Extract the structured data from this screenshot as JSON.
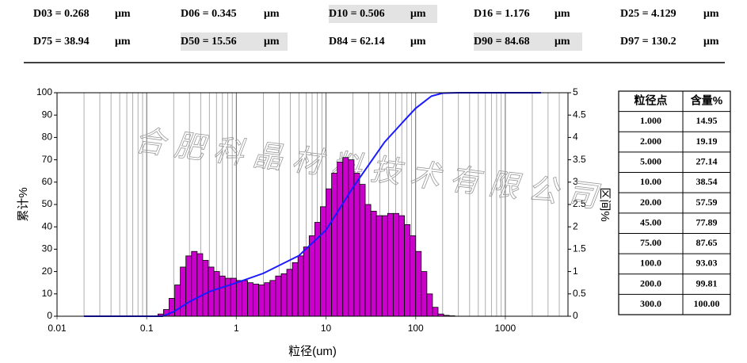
{
  "stats": [
    {
      "text": "D03 = 0.268",
      "unit": "μm"
    },
    {
      "text": "D06 = 0.345",
      "unit": "μm"
    },
    {
      "text": "D10 = 0.506",
      "unit": "μm"
    },
    {
      "text": "D16 = 1.176",
      "unit": "μm"
    },
    {
      "text": "D25 = 4.129",
      "unit": "μm"
    },
    {
      "text": "D75 = 38.94",
      "unit": "μm"
    },
    {
      "text": "D50 = 15.56",
      "unit": "μm"
    },
    {
      "text": "D84 = 62.14",
      "unit": "μm"
    },
    {
      "text": "D90 = 84.68",
      "unit": "μm"
    },
    {
      "text": "D97 = 130.2",
      "unit": "μm"
    }
  ],
  "table": {
    "header": [
      "粒径点",
      "含量%"
    ],
    "rows": [
      [
        "1.000",
        "14.95"
      ],
      [
        "2.000",
        "19.19"
      ],
      [
        "5.000",
        "27.14"
      ],
      [
        "10.00",
        "38.54"
      ],
      [
        "20.00",
        "57.59"
      ],
      [
        "45.00",
        "77.89"
      ],
      [
        "75.00",
        "87.65"
      ],
      [
        "100.0",
        "93.03"
      ],
      [
        "200.0",
        "99.81"
      ],
      [
        "300.0",
        "100.00"
      ]
    ]
  },
  "chart_data": {
    "type": "histogram",
    "x_label": "粒径(um)",
    "y_label": "累计%",
    "y2_label": "区间%",
    "watermark": "合肥科晶材料技术有限公司",
    "log_x": true,
    "xlim": [
      0.01,
      5000
    ],
    "xticks": [
      0.01,
      0.1,
      1,
      10,
      100,
      1000
    ],
    "minor_xticks": [
      0.02,
      0.03,
      0.04,
      0.05,
      0.06,
      0.07,
      0.08,
      0.09,
      0.2,
      0.3,
      0.4,
      0.5,
      0.6,
      0.7,
      0.8,
      0.9,
      2,
      3,
      4,
      5,
      6,
      7,
      8,
      9,
      20,
      30,
      40,
      50,
      60,
      70,
      80,
      90,
      200,
      300,
      400,
      500,
      600,
      700,
      800,
      900,
      2000,
      3000,
      4000
    ],
    "ylim": [
      0,
      100
    ],
    "yticks": [
      0,
      10,
      20,
      30,
      40,
      50,
      60,
      70,
      80,
      90,
      100
    ],
    "y2lim": [
      0,
      5
    ],
    "y2ticks": [
      0,
      0.5,
      1,
      1.5,
      2,
      2.5,
      3,
      3.5,
      4,
      4.5,
      5
    ],
    "bins": [
      0.1334,
      0.154,
      0.1778,
      0.2054,
      0.2371,
      0.2738,
      0.3162,
      0.3652,
      0.4217,
      0.487,
      0.5623,
      0.6494,
      0.7499,
      0.866,
      1,
      1.155,
      1.334,
      1.54,
      1.778,
      2.054,
      2.371,
      2.738,
      3.162,
      3.652,
      4.217,
      4.87,
      5.623,
      6.494,
      7.499,
      8.66,
      10,
      11.55,
      13.34,
      15.4,
      17.78,
      20.54,
      23.71,
      27.38,
      31.62,
      36.52,
      42.17,
      48.7,
      56.23,
      64.94,
      74.99,
      86.6,
      100,
      115.5,
      133.4,
      154,
      177.8,
      205.4,
      237.1,
      273.8
    ],
    "values": [
      0.05,
      0.15,
      0.4,
      0.7,
      1.1,
      1.35,
      1.45,
      1.4,
      1.25,
      1.1,
      1.0,
      0.9,
      0.85,
      0.85,
      0.8,
      0.8,
      0.75,
      0.72,
      0.7,
      0.75,
      0.8,
      0.9,
      0.95,
      1.05,
      1.2,
      1.35,
      1.55,
      1.8,
      2.1,
      2.45,
      2.85,
      3.2,
      3.45,
      3.55,
      3.5,
      3.2,
      2.95,
      2.5,
      2.35,
      2.25,
      2.25,
      2.3,
      2.3,
      2.25,
      2.05,
      1.8,
      1.45,
      1.0,
      0.5,
      0.2,
      0.05,
      0.02,
      0.01
    ],
    "color": "#cc00cc",
    "axis": "y2",
    "line": {
      "type": "line",
      "color": "#1a1aff",
      "x": [
        0.02,
        0.15,
        0.2,
        0.3,
        0.5,
        1,
        2,
        5,
        10,
        20,
        45,
        75,
        100,
        150,
        200,
        300,
        2500
      ],
      "values": [
        0,
        0,
        2,
        6.5,
        11,
        14.95,
        19.19,
        27.14,
        38.54,
        57.59,
        77.89,
        87.65,
        93.03,
        98.5,
        99.81,
        100,
        100
      ]
    }
  }
}
